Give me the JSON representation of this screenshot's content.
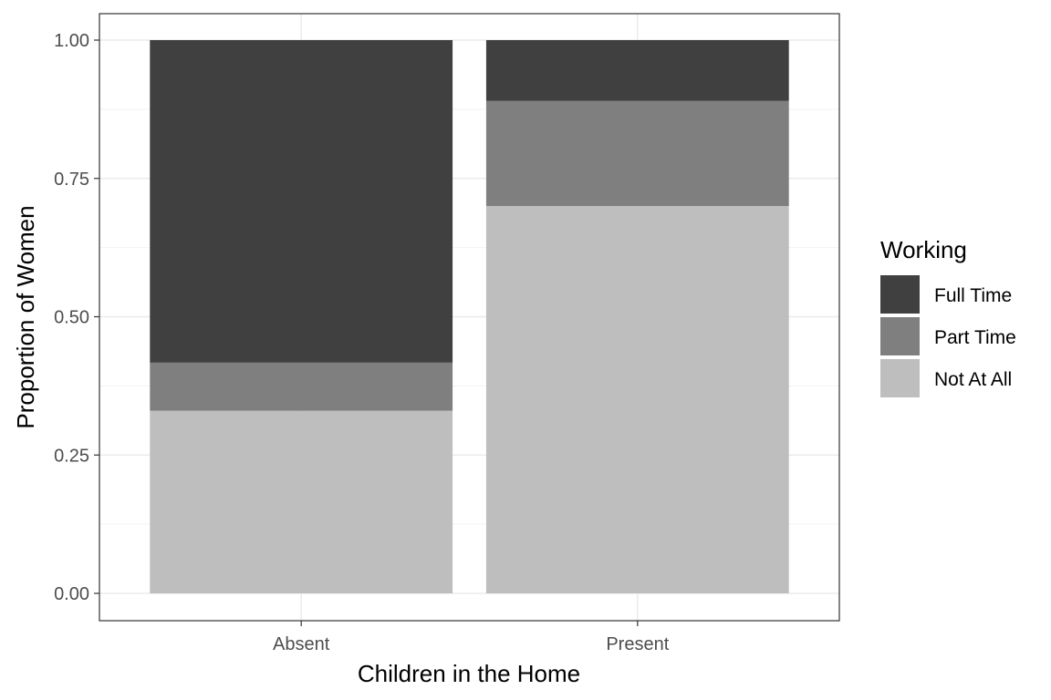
{
  "chart_data": {
    "type": "bar",
    "stacked": true,
    "xlabel": "Children in the Home",
    "ylabel": "Proportion of Women",
    "categories": [
      "Absent",
      "Present"
    ],
    "ylim": [
      0,
      1
    ],
    "yticks": [
      "0.00",
      "0.25",
      "0.50",
      "0.75",
      "1.00"
    ],
    "ytick_values": [
      0,
      0.25,
      0.5,
      0.75,
      1.0
    ],
    "grid": true,
    "legend": {
      "title": "Working",
      "placement": "right"
    },
    "series": [
      {
        "name": "Not At All",
        "color": "#bebebe",
        "values": [
          0.33,
          0.7
        ]
      },
      {
        "name": "Part Time",
        "color": "#7f7f7f",
        "values": [
          0.087,
          0.19
        ]
      },
      {
        "name": "Full Time",
        "color": "#404040",
        "values": [
          0.583,
          0.11
        ]
      }
    ],
    "legend_order": [
      "Full Time",
      "Part Time",
      "Not At All"
    ]
  }
}
